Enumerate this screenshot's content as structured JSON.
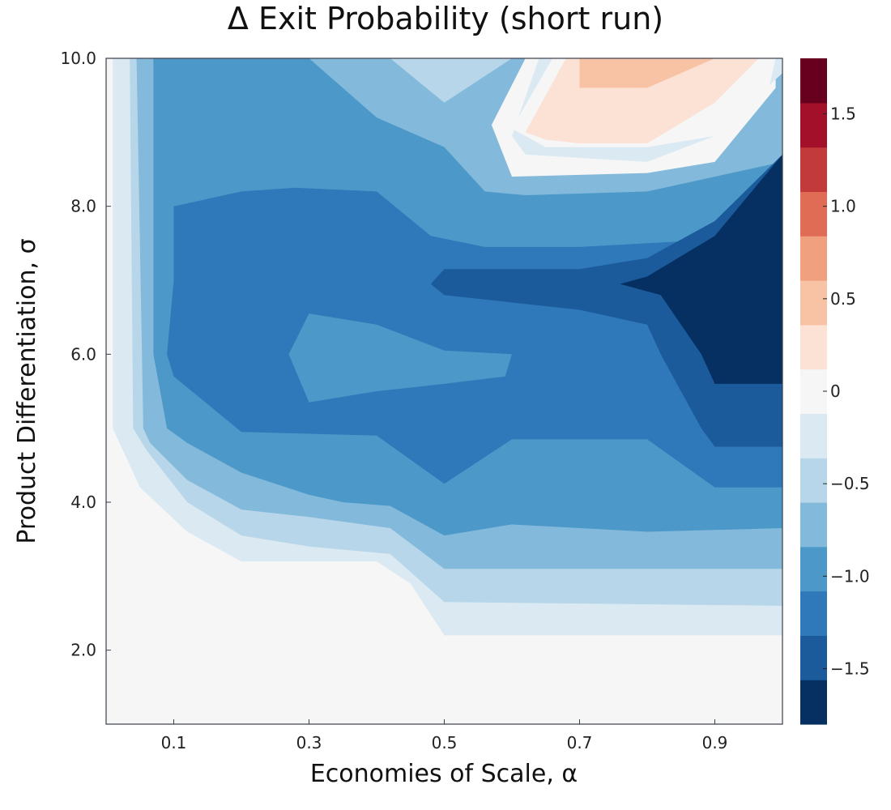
{
  "chart_data": {
    "type": "contour",
    "title": "Δ Exit Probability (short run)",
    "xlabel": "Economies of Scale, α",
    "ylabel": "Product Differentiation, σ",
    "xlim": [
      0.0,
      1.0
    ],
    "ylim": [
      1.0,
      10.0
    ],
    "xticks": [
      0.1,
      0.3,
      0.5,
      0.7,
      0.9
    ],
    "xtick_labels": [
      "0.1",
      "0.3",
      "0.5",
      "0.7",
      "0.9"
    ],
    "yticks": [
      2.0,
      4.0,
      6.0,
      8.0,
      10.0
    ],
    "ytick_labels": [
      "2.0",
      "4.0",
      "6.0",
      "8.0",
      "10.0"
    ],
    "grid": false,
    "colorbar": {
      "position": "right",
      "range": [
        -1.8,
        1.8
      ],
      "ticks": [
        -1.5,
        -1.0,
        -0.5,
        0,
        0.5,
        1.0,
        1.5
      ],
      "tick_labels": [
        "−1.5",
        "−1.0",
        "−0.5",
        "0",
        "0.5",
        "1.0",
        "1.5"
      ],
      "colors": [
        "#053061",
        "#1b5a9b",
        "#2f78b9",
        "#4c99c9",
        "#83b9da",
        "#b7d6e9",
        "#dbeaf2",
        "#f6f6f6",
        "#fce1d5",
        "#f8c2a5",
        "#f0a07e",
        "#e06c56",
        "#c33a3b",
        "#a21129",
        "#67001f"
      ]
    },
    "regions": [
      {
        "level": -0.12,
        "color": "#dbeaf2",
        "points": [
          [
            0.01,
            10
          ],
          [
            0.58,
            10
          ],
          [
            1.0,
            10
          ],
          [
            1.0,
            2.2
          ],
          [
            0.5,
            2.2
          ],
          [
            0.45,
            2.9
          ],
          [
            0.4,
            3.2
          ],
          [
            0.2,
            3.2
          ],
          [
            0.12,
            3.6
          ],
          [
            0.05,
            4.2
          ],
          [
            0.01,
            5.0
          ]
        ]
      },
      {
        "level": -0.38,
        "color": "#b7d6e9",
        "points": [
          [
            0.035,
            10
          ],
          [
            0.57,
            10
          ],
          [
            1.0,
            10
          ],
          [
            1.0,
            2.6
          ],
          [
            0.5,
            2.65
          ],
          [
            0.42,
            3.3
          ],
          [
            0.3,
            3.4
          ],
          [
            0.2,
            3.55
          ],
          [
            0.12,
            4.0
          ],
          [
            0.06,
            4.7
          ],
          [
            0.04,
            5.0
          ]
        ]
      },
      {
        "level": -0.62,
        "color": "#83b9da",
        "points": [
          [
            0.045,
            10
          ],
          [
            0.42,
            10
          ],
          [
            0.5,
            9.4
          ],
          [
            0.6,
            10
          ],
          [
            1.0,
            10
          ],
          [
            1.0,
            3.1
          ],
          [
            0.5,
            3.1
          ],
          [
            0.42,
            3.65
          ],
          [
            0.3,
            3.8
          ],
          [
            0.2,
            3.9
          ],
          [
            0.12,
            4.3
          ],
          [
            0.065,
            4.8
          ],
          [
            0.055,
            5.0
          ]
        ]
      },
      {
        "level": -0.88,
        "color": "#4c99c9",
        "points": [
          [
            0.07,
            10
          ],
          [
            0.3,
            10
          ],
          [
            0.4,
            9.2
          ],
          [
            0.5,
            8.8
          ],
          [
            0.56,
            8.2
          ],
          [
            0.62,
            8.15
          ],
          [
            0.8,
            8.2
          ],
          [
            0.9,
            8.4
          ],
          [
            1.0,
            8.6
          ],
          [
            1.0,
            3.65
          ],
          [
            0.8,
            3.6
          ],
          [
            0.6,
            3.7
          ],
          [
            0.5,
            3.55
          ],
          [
            0.42,
            3.95
          ],
          [
            0.35,
            4.0
          ],
          [
            0.3,
            4.1
          ],
          [
            0.2,
            4.4
          ],
          [
            0.12,
            4.8
          ],
          [
            0.09,
            5.0
          ],
          [
            0.07,
            6.0
          ]
        ]
      },
      {
        "level": -1.12,
        "color": "#2f78b9",
        "points": [
          [
            0.1,
            8.0
          ],
          [
            0.2,
            8.2
          ],
          [
            0.28,
            8.25
          ],
          [
            0.4,
            8.2
          ],
          [
            0.48,
            7.6
          ],
          [
            0.56,
            7.45
          ],
          [
            0.7,
            7.45
          ],
          [
            0.8,
            7.5
          ],
          [
            1.0,
            7.6
          ],
          [
            1.0,
            4.2
          ],
          [
            0.9,
            4.2
          ],
          [
            0.8,
            4.85
          ],
          [
            0.6,
            4.85
          ],
          [
            0.5,
            4.25
          ],
          [
            0.4,
            4.9
          ],
          [
            0.2,
            4.95
          ],
          [
            0.1,
            5.7
          ],
          [
            0.09,
            6.0
          ],
          [
            0.1,
            7.0
          ]
        ]
      },
      {
        "level": -0.88,
        "color": "#4c99c9",
        "points": [
          [
            0.27,
            6.0
          ],
          [
            0.3,
            6.55
          ],
          [
            0.4,
            6.4
          ],
          [
            0.5,
            6.05
          ],
          [
            0.6,
            6.0
          ],
          [
            0.59,
            5.7
          ],
          [
            0.5,
            5.6
          ],
          [
            0.4,
            5.5
          ],
          [
            0.3,
            5.35
          ]
        ]
      },
      {
        "level": -1.38,
        "color": "#1b5a9b",
        "points": [
          [
            0.48,
            6.95
          ],
          [
            0.5,
            7.15
          ],
          [
            0.7,
            7.15
          ],
          [
            0.8,
            7.3
          ],
          [
            0.9,
            7.8
          ],
          [
            1.0,
            8.7
          ],
          [
            1.0,
            4.75
          ],
          [
            0.9,
            4.75
          ],
          [
            0.88,
            5.0
          ],
          [
            0.82,
            6.0
          ],
          [
            0.8,
            6.4
          ],
          [
            0.7,
            6.6
          ],
          [
            0.6,
            6.7
          ],
          [
            0.5,
            6.8
          ]
        ]
      },
      {
        "level": -1.62,
        "color": "#053061",
        "points": [
          [
            0.76,
            6.95
          ],
          [
            0.8,
            7.05
          ],
          [
            0.9,
            7.6
          ],
          [
            1.0,
            8.7
          ],
          [
            1.0,
            5.6
          ],
          [
            0.9,
            5.6
          ],
          [
            0.88,
            6.0
          ],
          [
            0.82,
            6.8
          ]
        ]
      },
      {
        "level": 0.0,
        "color": "#f6f6f6",
        "points": [
          [
            0.57,
            9.1
          ],
          [
            0.62,
            10
          ],
          [
            0.99,
            10
          ],
          [
            0.99,
            9.6
          ],
          [
            0.9,
            8.6
          ],
          [
            0.8,
            8.45
          ],
          [
            0.6,
            8.4
          ]
        ]
      },
      {
        "level": -0.12,
        "color": "#dbeaf2",
        "points": [
          [
            0.6,
            8.95
          ],
          [
            0.64,
            10
          ],
          [
            1.0,
            10
          ],
          [
            1.0,
            9.8
          ],
          [
            0.9,
            8.95
          ],
          [
            0.8,
            8.6
          ],
          [
            0.62,
            8.7
          ]
        ]
      },
      {
        "level": 0.0,
        "color": "#f6f6f6",
        "points": [
          [
            0.6,
            9.05
          ],
          [
            0.66,
            10
          ],
          [
            0.99,
            10
          ],
          [
            0.98,
            9.6
          ],
          [
            0.9,
            8.95
          ],
          [
            0.8,
            8.8
          ],
          [
            0.65,
            8.8
          ]
        ]
      },
      {
        "level": 0.12,
        "color": "#fce1d5",
        "points": [
          [
            0.62,
            9.0
          ],
          [
            0.68,
            10
          ],
          [
            0.965,
            10
          ],
          [
            0.9,
            9.4
          ],
          [
            0.8,
            8.85
          ],
          [
            0.7,
            8.85
          ],
          [
            0.65,
            8.9
          ]
        ]
      },
      {
        "level": 0.38,
        "color": "#f8c2a5",
        "points": [
          [
            0.7,
            10
          ],
          [
            0.7,
            9.6
          ],
          [
            0.8,
            9.6
          ],
          [
            0.9,
            10
          ]
        ]
      }
    ]
  }
}
